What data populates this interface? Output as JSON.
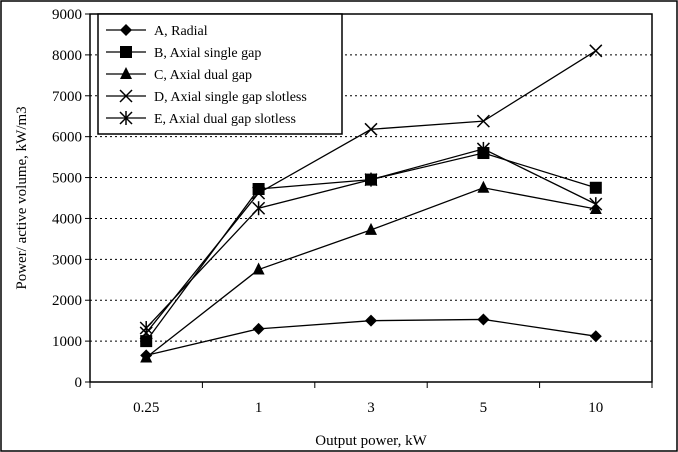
{
  "chart_data": {
    "type": "line",
    "title": "",
    "xlabel": "Output power, kW",
    "ylabel": "Power/ active volume, kW/m3",
    "categories": [
      "0.25",
      "1",
      "3",
      "5",
      "10"
    ],
    "ylim": [
      0,
      9000
    ],
    "yticks": [
      0,
      1000,
      2000,
      3000,
      4000,
      5000,
      6000,
      7000,
      8000,
      9000
    ],
    "grid": "dotted-horizontal",
    "legend_position": "top-left",
    "series": [
      {
        "name": "A, Radial",
        "marker": "diamond",
        "values": [
          650,
          1300,
          1500,
          1530,
          1120
        ]
      },
      {
        "name": "B, Axial single gap",
        "marker": "square",
        "values": [
          1000,
          4720,
          4950,
          5600,
          4750
        ]
      },
      {
        "name": "C, Axial dual gap",
        "marker": "triangle",
        "values": [
          600,
          2750,
          3720,
          4750,
          4230
        ]
      },
      {
        "name": "D, Axial single gap slotless",
        "marker": "x",
        "values": [
          1200,
          4620,
          6180,
          6380,
          8100
        ]
      },
      {
        "name": "E, Axial dual gap slotless",
        "marker": "asterisk",
        "values": [
          1320,
          4250,
          4950,
          5700,
          4350
        ]
      }
    ]
  }
}
